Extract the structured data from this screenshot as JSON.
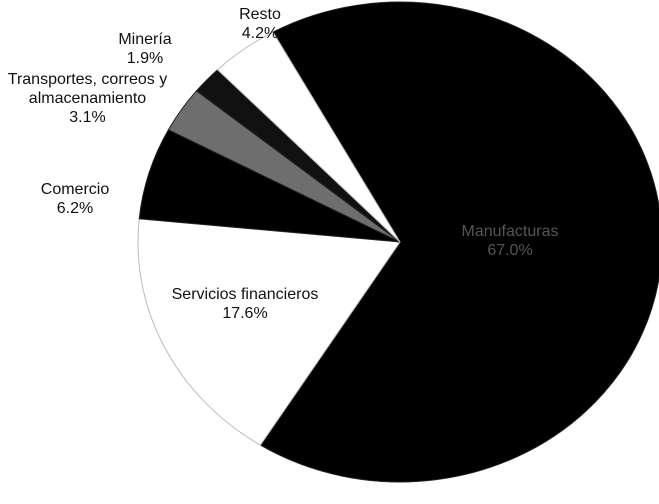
{
  "chart_data": {
    "type": "pie",
    "categories": [
      "Manufacturas",
      "Servicios financieros",
      "Comercio",
      "Transportes, correos y almacenamiento",
      "Minería",
      "Resto"
    ],
    "values": [
      67.0,
      17.6,
      6.2,
      3.1,
      1.9,
      4.2
    ],
    "value_labels": [
      "67.0%",
      "17.6%",
      "6.2%",
      "3.1%",
      "1.9%",
      "4.2%"
    ],
    "colors": [
      "#000000",
      "#ffffff",
      "#000000",
      "#6e6e6e",
      "#111111",
      "#ffffff"
    ]
  }
}
